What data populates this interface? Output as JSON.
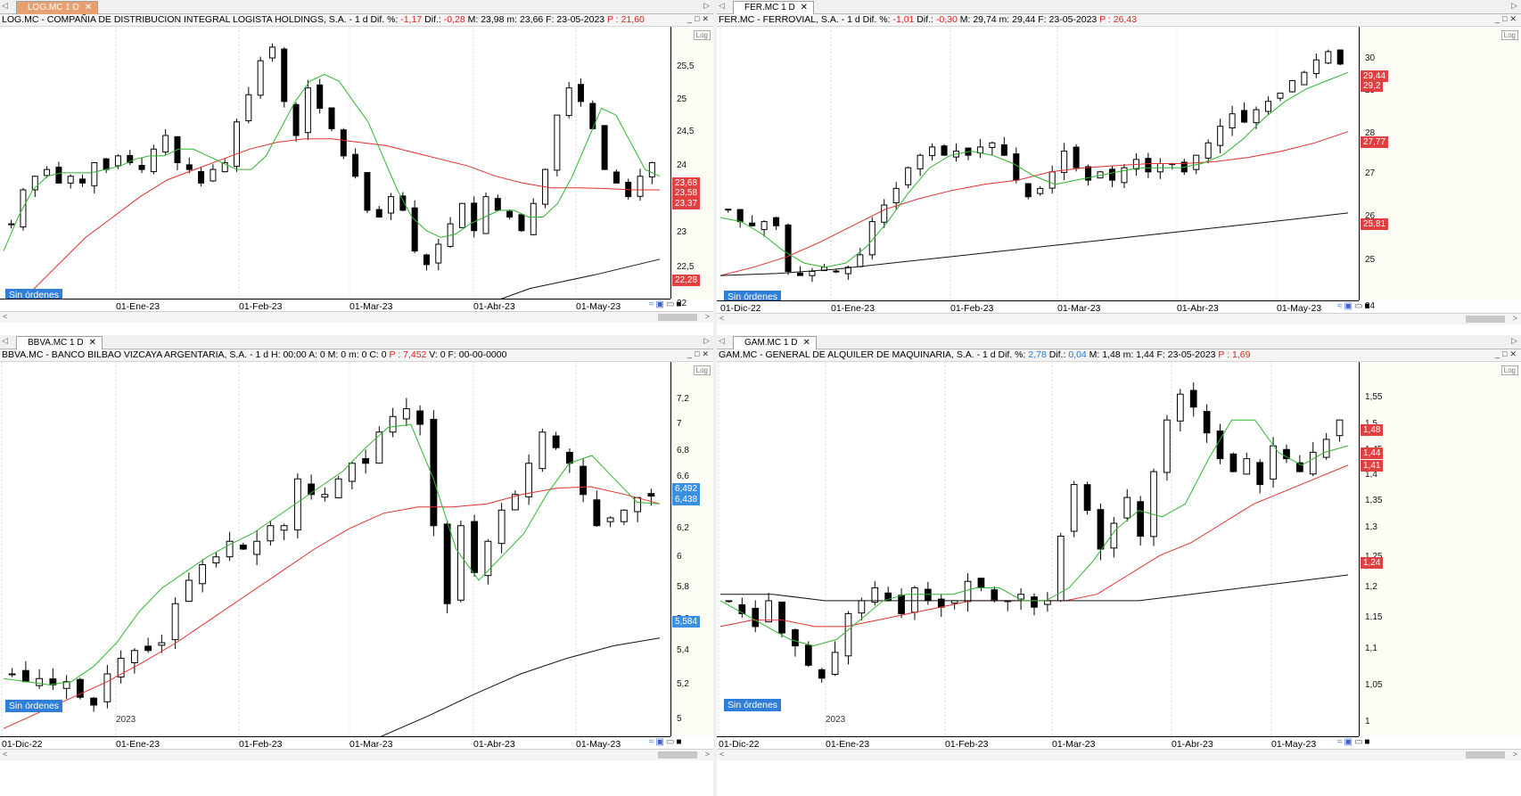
{
  "panes": [
    {
      "id": "log",
      "tab": {
        "label": "LOG.MC 1 D",
        "active": true
      },
      "header": [
        {
          "t": "LOG.MC - COMPAÑIA DE DISTRIBUCION INTEGRAL LOGISTA HOLDINGS, S.A. - 1 d  Dif. %: ",
          "c": ""
        },
        {
          "t": "-1,17",
          "c": "red"
        },
        {
          "t": "  Dif.: ",
          "c": ""
        },
        {
          "t": "-0,28",
          "c": "red"
        },
        {
          "t": "  M: 23,98  m: 23,66  F: 23-05-2023  ",
          "c": ""
        },
        {
          "t": "P : 21,60",
          "c": "red"
        }
      ],
      "y_ticks": [
        "25,5",
        "25",
        "24,5",
        "24",
        "23,5",
        "23",
        "22,5",
        "22"
      ],
      "badges": [
        {
          "label": "23,68",
          "color": "#e04040"
        },
        {
          "label": "23,58",
          "color": "#e04040"
        },
        {
          "label": "23,37",
          "color": "#e04040"
        },
        {
          "label": "22,28",
          "color": "#e04040"
        }
      ],
      "x_ticks": [
        "01-Ene-23",
        "01-Feb-23",
        "01-Mar-23",
        "01-Abr-23",
        "01-May-23"
      ],
      "year_label": "2023",
      "orders_label": "Sin órdenes",
      "log_label": "Log",
      "chart_data": {
        "type": "candlestick",
        "ylim": [
          21.7,
          25.7
        ],
        "series": [
          {
            "name": "",
            "color": "#2fb52f",
            "kind": "ma_fast"
          },
          {
            "name": "",
            "color": "#e03030",
            "kind": "ma_mid"
          },
          {
            "name": "",
            "color": "#111111",
            "kind": "ma_slow"
          }
        ],
        "close_path": [
          22.8,
          23.3,
          23.5,
          23.6,
          23.4,
          23.5,
          23.4,
          23.7,
          23.6,
          23.8,
          23.7,
          23.6,
          23.9,
          24.1,
          23.7,
          23.6,
          23.4,
          23.6,
          23.7,
          24.3,
          24.7,
          25.2,
          25.4,
          24.6,
          24.1,
          24.8,
          24.5,
          24.2,
          23.8,
          23.5,
          23.0,
          22.9,
          23.2,
          23.0,
          22.4,
          22.2,
          22.5,
          22.8,
          23.1,
          22.7,
          23.2,
          23.0,
          22.9,
          22.7,
          23.1,
          23.6,
          24.4,
          24.8,
          24.6,
          24.2,
          23.6,
          23.4,
          23.2,
          23.5,
          23.7
        ],
        "ma_fast_path": [
          22.4,
          22.9,
          23.3,
          23.5,
          23.55,
          23.55,
          23.55,
          23.6,
          23.65,
          23.75,
          23.8,
          23.8,
          23.9,
          23.9,
          23.8,
          23.7,
          23.6,
          23.6,
          23.8,
          24.2,
          24.6,
          24.9,
          25.0,
          24.9,
          24.6,
          24.3,
          23.8,
          23.3,
          22.9,
          22.7,
          22.6,
          22.65,
          22.8,
          22.9,
          23.0,
          23.0,
          22.9,
          22.9,
          23.1,
          23.5,
          24.0,
          24.5,
          24.4,
          24.0,
          23.6,
          23.5
        ],
        "ma_mid_path": [
          21.4,
          21.8,
          22.2,
          22.6,
          22.9,
          23.2,
          23.45,
          23.6,
          23.75,
          23.9,
          24.0,
          24.05,
          24.05,
          24.0,
          23.95,
          23.85,
          23.75,
          23.65,
          23.5,
          23.4,
          23.33,
          23.33,
          23.32,
          23.3,
          23.3
        ],
        "ma_slow_path": [
          20.9,
          21.2,
          21.5,
          21.85,
          22.05,
          22.28
        ]
      }
    },
    {
      "id": "fer",
      "tab": {
        "label": "FER.MC 1 D",
        "active": false
      },
      "header": [
        {
          "t": "FER.MC - FERROVIAL, S.A.  - 1 d  Dif. %: ",
          "c": ""
        },
        {
          "t": "-1,01",
          "c": "red"
        },
        {
          "t": "  Dif.: ",
          "c": ""
        },
        {
          "t": "-0,30",
          "c": "red"
        },
        {
          "t": "  M: 29,74  m: 29,44  F: 23-05-2023  ",
          "c": ""
        },
        {
          "t": "P : 26,43",
          "c": "red"
        }
      ],
      "y_ticks": [
        "30",
        "29",
        "28",
        "27",
        "26",
        "25",
        "24"
      ],
      "badges": [
        {
          "label": "29,44",
          "color": "#e04040"
        },
        {
          "label": "29,2",
          "color": "#e04040"
        },
        {
          "label": "27,77",
          "color": "#e04040"
        },
        {
          "label": "25,81",
          "color": "#e04040"
        }
      ],
      "x_ticks": [
        "01-Dic-22",
        "01-Ene-23",
        "01-Feb-23",
        "01-Mar-23",
        "01-Abr-23",
        "01-May-23"
      ],
      "year_label": "2023",
      "orders_label": "Sin órdenes",
      "log_label": "Log",
      "chart_data": {
        "type": "candlestick",
        "ylim": [
          23.7,
          30.3
        ],
        "series": [
          {
            "name": "",
            "color": "#2fb52f",
            "kind": "ma_fast"
          },
          {
            "name": "",
            "color": "#e03030",
            "kind": "ma_mid"
          },
          {
            "name": "",
            "color": "#111111",
            "kind": "ma_slow"
          }
        ],
        "close_path": [
          25.9,
          25.6,
          25.5,
          25.6,
          25.5,
          24.4,
          24.3,
          24.4,
          24.5,
          24.4,
          24.5,
          24.8,
          25.6,
          26.0,
          26.4,
          26.9,
          27.2,
          27.4,
          27.2,
          27.3,
          27.2,
          27.4,
          27.5,
          27.2,
          26.6,
          26.2,
          26.4,
          26.8,
          27.3,
          26.9,
          26.6,
          26.8,
          26.6,
          26.9,
          27.1,
          26.8,
          27.0,
          27.0,
          26.8,
          27.2,
          27.5,
          27.9,
          28.2,
          28.0,
          28.3,
          28.5,
          28.7,
          29.0,
          29.2,
          29.5,
          29.7,
          29.4
        ],
        "ma_fast_path": [
          25.7,
          25.6,
          25.3,
          24.9,
          24.6,
          24.5,
          24.6,
          25.0,
          25.6,
          26.3,
          26.9,
          27.2,
          27.3,
          27.2,
          27.0,
          26.7,
          26.5,
          26.6,
          26.7,
          26.8,
          26.9,
          26.9,
          26.9,
          27.0,
          27.2,
          27.6,
          28.1,
          28.5,
          28.8,
          29.0,
          29.2
        ],
        "ma_mid_path": [
          24.3,
          24.5,
          24.75,
          25.1,
          25.5,
          25.9,
          26.15,
          26.35,
          26.5,
          26.6,
          26.8,
          26.9,
          26.95,
          27.0,
          27.0,
          27.05,
          27.15,
          27.3,
          27.5,
          27.77
        ],
        "ma_slow_path": [
          24.3,
          24.35,
          24.45,
          24.6,
          24.75,
          24.9,
          25.05,
          25.2,
          25.35,
          25.5,
          25.65,
          25.81
        ]
      }
    },
    {
      "id": "bbva",
      "tab": {
        "label": "BBVA.MC 1 D",
        "active": false
      },
      "header": [
        {
          "t": "BBVA.MC - BANCO BILBAO VIZCAYA ARGENTARIA, S.A. - 1 d  H: 00:00  A: 0  M: 0  m: 0  C: 0  ",
          "c": ""
        },
        {
          "t": "P : 7,452",
          "c": "red"
        },
        {
          "t": "  V: 0  F: 00-00-0000",
          "c": ""
        }
      ],
      "y_ticks": [
        "7,2",
        "7",
        "6,8",
        "6,6",
        "6,4",
        "6,2",
        "6",
        "5,8",
        "5,6",
        "5,4",
        "5,2",
        "5"
      ],
      "badges": [
        {
          "label": "6,492",
          "color": "#3a8fe0"
        },
        {
          "label": "6,438",
          "color": "#3a8fe0"
        },
        {
          "label": "5,584",
          "color": "#3a8fe0"
        }
      ],
      "x_ticks": [
        "01-Dic-22",
        "01-Ene-23",
        "01-Feb-23",
        "01-Mar-23",
        "01-Abr-23",
        "01-May-23"
      ],
      "year_label": "2023",
      "orders_label": "Sin órdenes",
      "log_label": "Log",
      "chart_data": {
        "type": "candlestick",
        "ylim": [
          4.95,
          7.35
        ],
        "series": [
          {
            "name": "",
            "color": "#2fb52f",
            "kind": "ma_fast"
          },
          {
            "name": "",
            "color": "#e03030",
            "kind": "ma_mid"
          },
          {
            "name": "",
            "color": "#111111",
            "kind": "ma_slow"
          }
        ],
        "close_path": [
          5.35,
          5.3,
          5.32,
          5.28,
          5.3,
          5.2,
          5.15,
          5.35,
          5.45,
          5.5,
          5.5,
          5.55,
          5.8,
          5.95,
          6.05,
          6.1,
          6.2,
          6.15,
          6.2,
          6.3,
          6.3,
          6.6,
          6.5,
          6.5,
          6.6,
          6.7,
          6.7,
          6.9,
          7.0,
          7.05,
          6.95,
          6.3,
          5.8,
          6.3,
          6.0,
          6.2,
          6.4,
          6.5,
          6.7,
          6.9,
          6.8,
          6.7,
          6.5,
          6.3,
          6.35,
          6.4,
          6.48,
          6.49
        ],
        "ma_fast_path": [
          5.32,
          5.3,
          5.28,
          5.3,
          5.4,
          5.55,
          5.75,
          5.9,
          6.0,
          6.1,
          6.18,
          6.25,
          6.35,
          6.45,
          6.55,
          6.65,
          6.8,
          6.93,
          6.95,
          6.6,
          6.15,
          5.95,
          6.1,
          6.25,
          6.5,
          6.7,
          6.75,
          6.6,
          6.45,
          6.44
        ],
        "ma_mid_path": [
          5.0,
          5.1,
          5.2,
          5.3,
          5.42,
          5.55,
          5.7,
          5.85,
          6.0,
          6.15,
          6.28,
          6.38,
          6.42,
          6.42,
          6.44,
          6.5,
          6.54,
          6.55,
          6.5,
          6.44
        ],
        "ma_slow_path": [
          4.85,
          4.95,
          5.08,
          5.22,
          5.35,
          5.45,
          5.53,
          5.58
        ]
      }
    },
    {
      "id": "gam",
      "tab": {
        "label": "GAM.MC 1 D",
        "active": false
      },
      "header": [
        {
          "t": "GAM.MC - GENERAL DE ALQUILER DE MAQUINARIA, S.A. - 1 d  Dif. %: ",
          "c": ""
        },
        {
          "t": "2,78",
          "c": "blue"
        },
        {
          "t": "  Dif.: ",
          "c": ""
        },
        {
          "t": "0,04",
          "c": "blue"
        },
        {
          "t": "  M: 1,48  m: 1,44  F: 23-05-2023  ",
          "c": ""
        },
        {
          "t": "P : 1,69",
          "c": "red"
        }
      ],
      "y_ticks": [
        "1,55",
        "1,5",
        "1,45",
        "1,4",
        "1,35",
        "1,3",
        "1,25",
        "1,2",
        "1,15",
        "1,1",
        "1,05",
        "1"
      ],
      "badges": [
        {
          "label": "1,48",
          "color": "#e04040"
        },
        {
          "label": "1,44",
          "color": "#e04040"
        },
        {
          "label": "1,41",
          "color": "#e04040"
        },
        {
          "label": "1,24",
          "color": "#e04040"
        }
      ],
      "x_ticks": [
        "01-Dic-22",
        "01-Ene-23",
        "01-Feb-23",
        "01-Mar-23",
        "01-Abr-23",
        "01-May-23"
      ],
      "year_label": "2023",
      "orders_label": "Sin órdenes",
      "log_label": "Log",
      "chart_data": {
        "type": "candlestick",
        "ylim": [
          0.99,
          1.57
        ],
        "series": [
          {
            "name": "",
            "color": "#2fb52f",
            "kind": "ma_fast"
          },
          {
            "name": "",
            "color": "#e03030",
            "kind": "ma_mid"
          },
          {
            "name": "",
            "color": "#111111",
            "kind": "ma_slow"
          }
        ],
        "close_path": [
          1.2,
          1.18,
          1.16,
          1.2,
          1.15,
          1.13,
          1.1,
          1.08,
          1.12,
          1.18,
          1.2,
          1.22,
          1.2,
          1.18,
          1.22,
          1.2,
          1.19,
          1.2,
          1.23,
          1.22,
          1.2,
          1.2,
          1.21,
          1.19,
          1.2,
          1.3,
          1.38,
          1.34,
          1.28,
          1.32,
          1.36,
          1.3,
          1.4,
          1.48,
          1.52,
          1.5,
          1.46,
          1.42,
          1.4,
          1.42,
          1.38,
          1.44,
          1.42,
          1.4,
          1.43,
          1.45,
          1.48
        ],
        "ma_fast_path": [
          1.2,
          1.18,
          1.16,
          1.14,
          1.13,
          1.14,
          1.17,
          1.2,
          1.21,
          1.21,
          1.21,
          1.22,
          1.22,
          1.2,
          1.2,
          1.22,
          1.26,
          1.31,
          1.34,
          1.33,
          1.35,
          1.42,
          1.48,
          1.48,
          1.43,
          1.41,
          1.43,
          1.44
        ],
        "ma_mid_path": [
          1.16,
          1.17,
          1.17,
          1.16,
          1.16,
          1.17,
          1.18,
          1.19,
          1.2,
          1.2,
          1.2,
          1.2,
          1.21,
          1.24,
          1.27,
          1.29,
          1.32,
          1.35,
          1.37,
          1.39,
          1.41
        ],
        "ma_slow_path": [
          1.21,
          1.21,
          1.2,
          1.2,
          1.2,
          1.2,
          1.2,
          1.2,
          1.2,
          1.21,
          1.22,
          1.23,
          1.24
        ]
      }
    }
  ]
}
